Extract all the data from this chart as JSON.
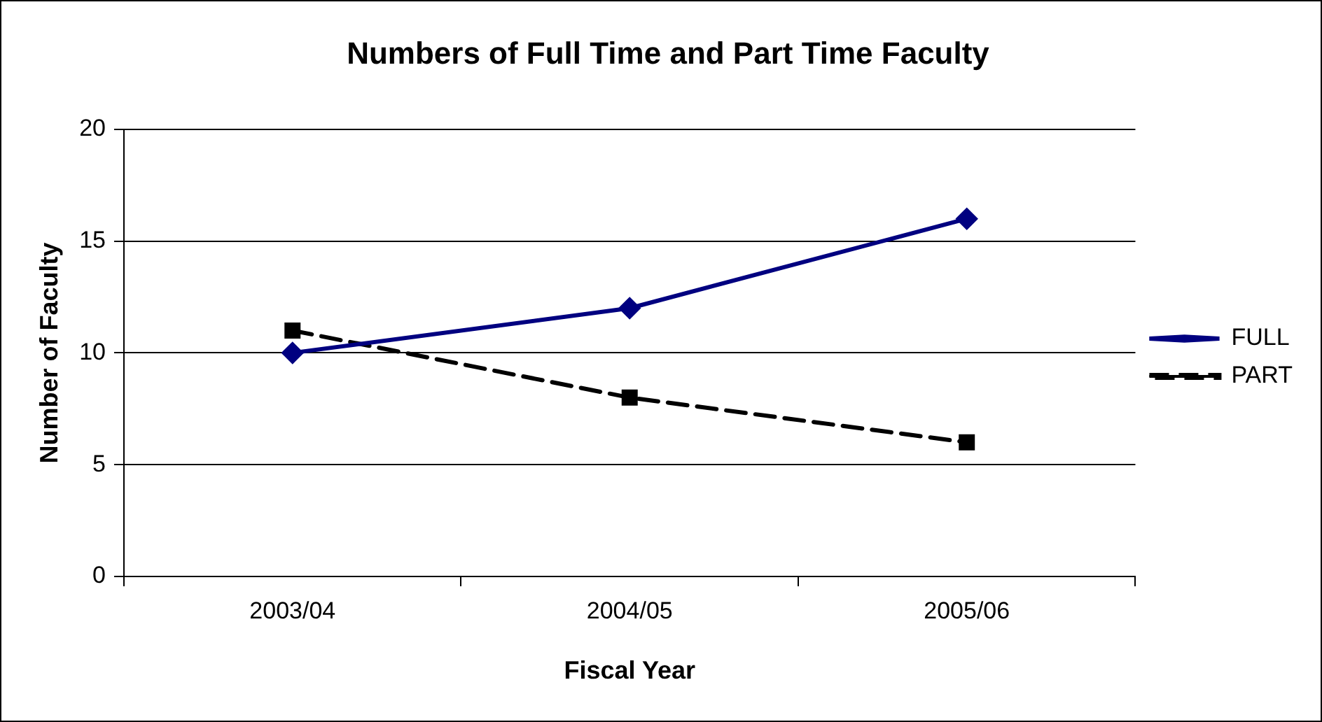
{
  "chart_data": {
    "type": "line",
    "title": "Numbers of Full Time and Part Time Faculty",
    "xlabel": "Fiscal Year",
    "ylabel": "Number of Faculty",
    "categories": [
      "2003/04",
      "2004/05",
      "2005/06"
    ],
    "series": [
      {
        "name": "FULL",
        "color": "#000080",
        "values": [
          10,
          12,
          16
        ],
        "marker": "diamond",
        "line_style": "solid"
      },
      {
        "name": "PART",
        "color": "#000000",
        "values": [
          11,
          8,
          6
        ],
        "marker": "square",
        "line_style": "dashed"
      }
    ],
    "ylim": [
      0,
      20
    ],
    "yticks": [
      0,
      5,
      10,
      15,
      20
    ],
    "grid": "y",
    "legend": "right"
  }
}
